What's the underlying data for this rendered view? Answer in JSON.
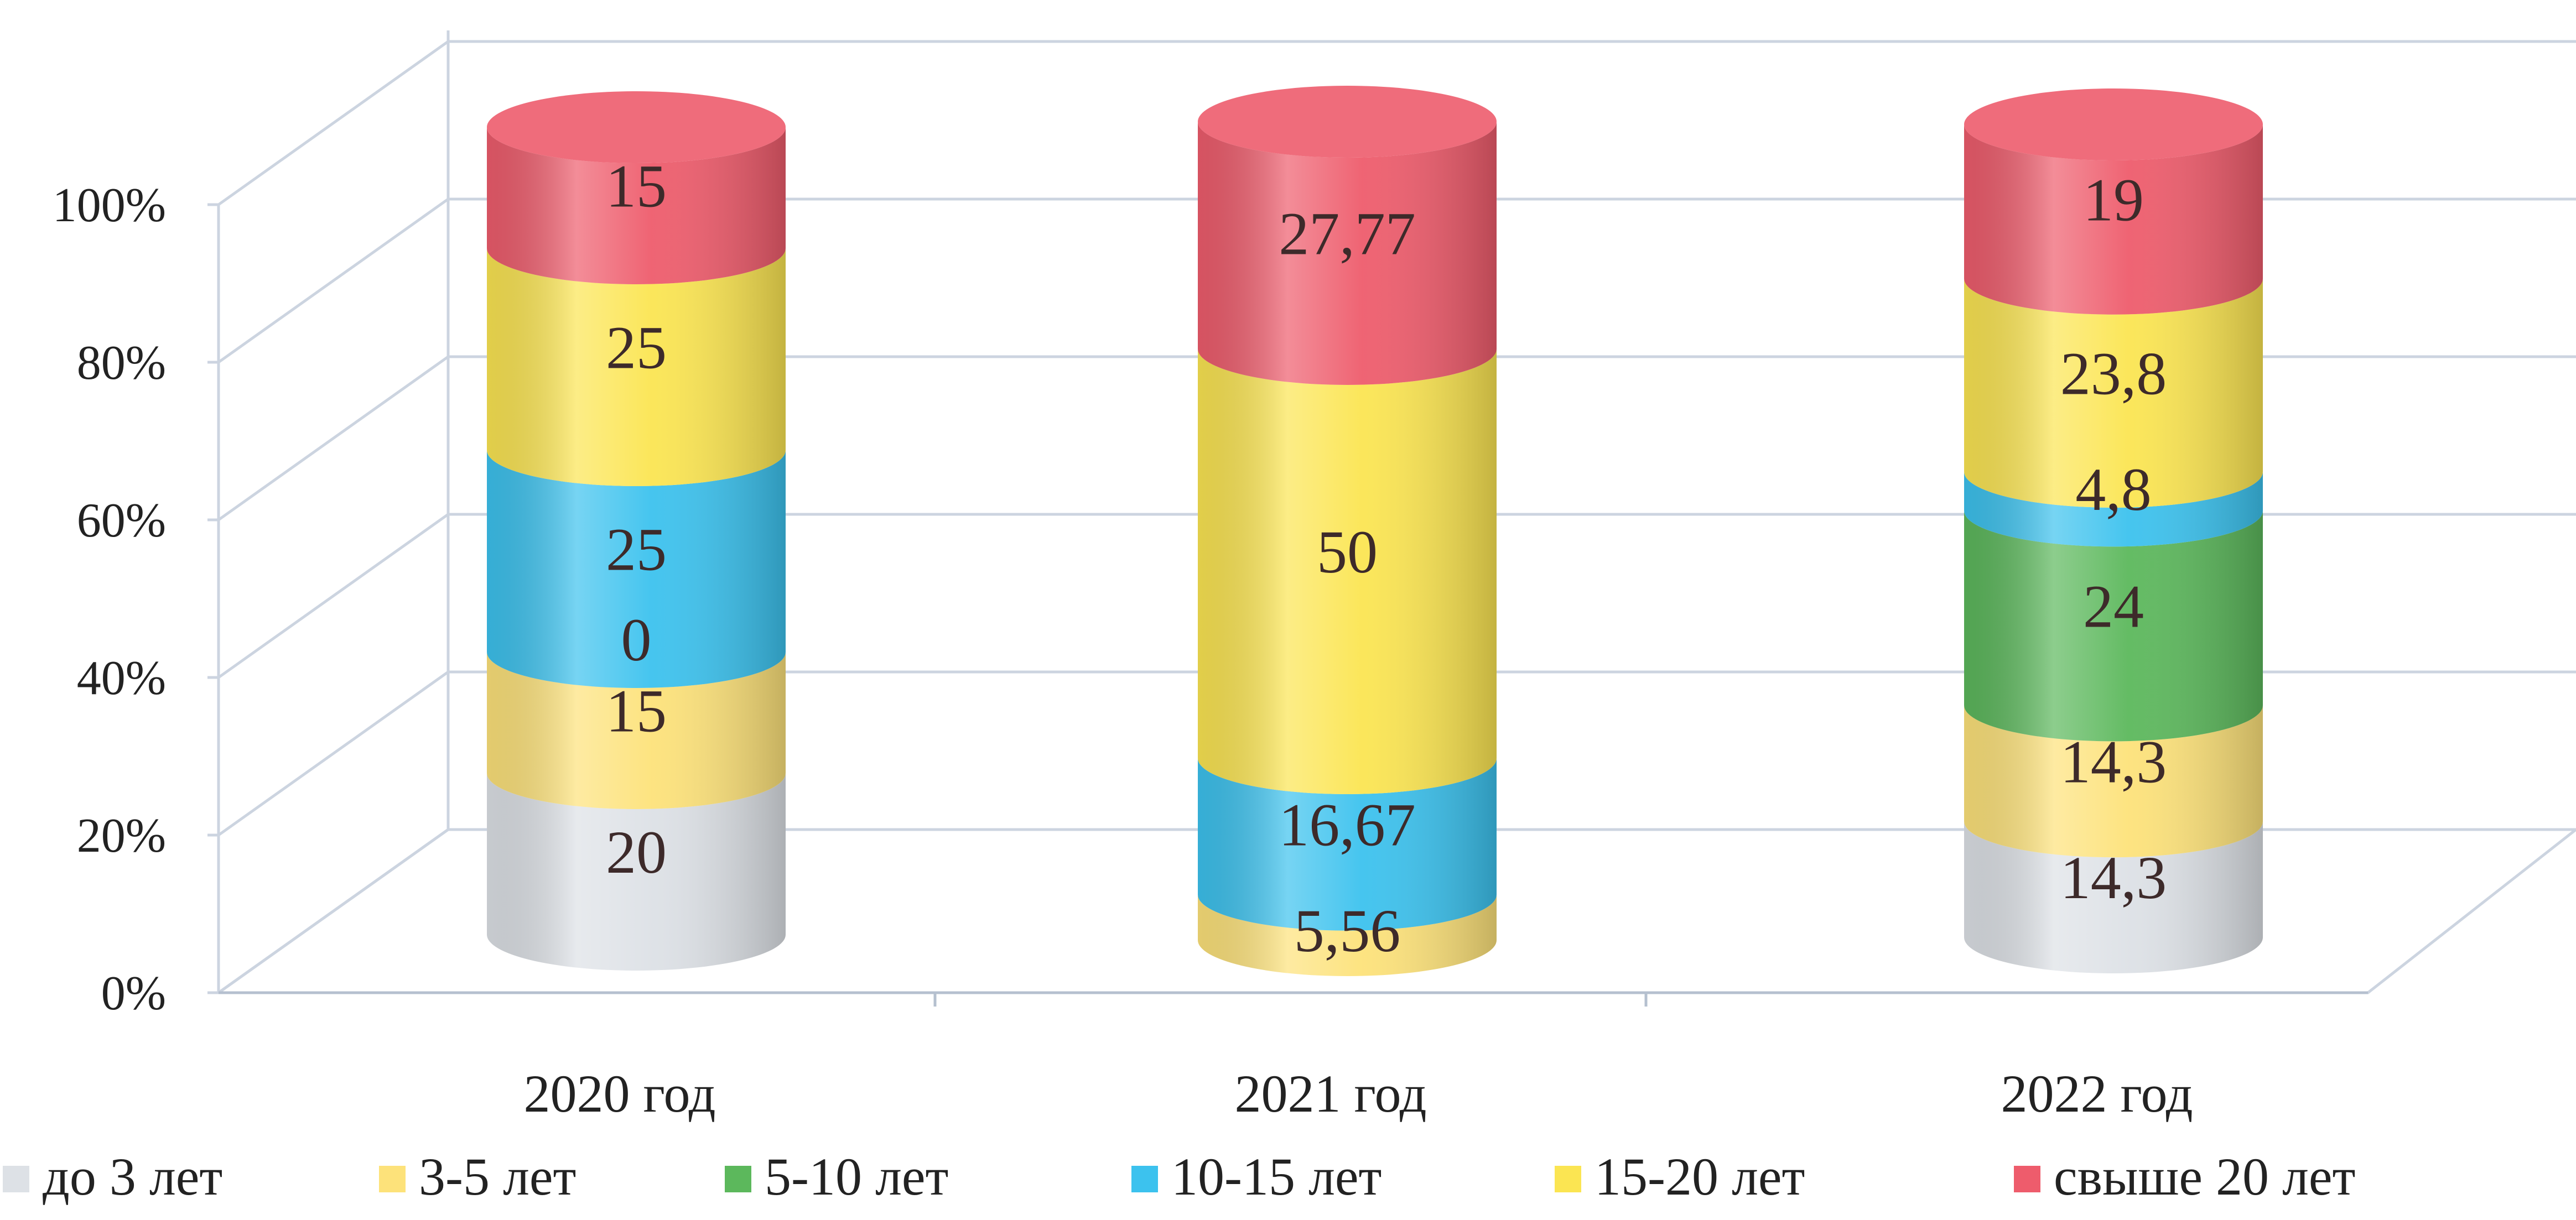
{
  "chart_data": {
    "type": "bar",
    "stacked": true,
    "percent_stacked": true,
    "style": "3d-cylinder",
    "categories": [
      "2020 год",
      "2021 год",
      "2022 год"
    ],
    "series": [
      {
        "name": "до 3 лет",
        "color": "#dde1e6",
        "values": [
          20,
          null,
          14.3
        ],
        "labels": [
          "20",
          "",
          "14,3"
        ]
      },
      {
        "name": "3-5 лет",
        "color": "#fde27a",
        "values": [
          15,
          5.56,
          14.3
        ],
        "labels": [
          "15",
          "5,56",
          "14,3"
        ]
      },
      {
        "name": "5-10 лет",
        "color": "#5cb85c",
        "values": [
          0,
          null,
          24
        ],
        "labels": [
          "0",
          "",
          "24"
        ]
      },
      {
        "name": "10-15 лет",
        "color": "#3cc2ee",
        "values": [
          25,
          16.67,
          4.8
        ],
        "labels": [
          "25",
          "16,67",
          "4,8"
        ]
      },
      {
        "name": "15-20 лет",
        "color": "#fbe552",
        "values": [
          25,
          50,
          23.8
        ],
        "labels": [
          "25",
          "50",
          "23,8"
        ]
      },
      {
        "name": "свыше 20 лет",
        "color": "#ee5c6c",
        "values": [
          15,
          27.77,
          19
        ],
        "labels": [
          "15",
          "27,77",
          "19"
        ]
      }
    ],
    "yaxis": {
      "ticks": [
        0,
        20,
        40,
        60,
        80,
        100
      ],
      "tick_labels": [
        "0%",
        "20%",
        "40%",
        "60%",
        "80%",
        "100%"
      ],
      "ylim": [
        0,
        100
      ]
    },
    "grid": true,
    "legend": "bottom",
    "title": "",
    "xlabel": "",
    "ylabel": ""
  }
}
